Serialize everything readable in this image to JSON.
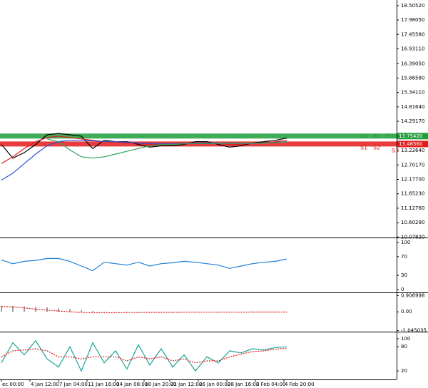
{
  "chart_data": [
    {
      "type": "line",
      "x": [
        0,
        4,
        8,
        12,
        16,
        20,
        24,
        28,
        32,
        36,
        40,
        44,
        48,
        52,
        56,
        60,
        64,
        68,
        72,
        76,
        80,
        84,
        88,
        92,
        96,
        100
      ],
      "xlim": [
        -0.5,
        138.5
      ],
      "ylim": [
        10.06,
        18.71
      ],
      "yticks": [
        {
          "value": 18.5052,
          "label": "18.50520"
        },
        {
          "value": 17.9805,
          "label": "17.98050"
        },
        {
          "value": 17.4558,
          "label": "17.45580"
        },
        {
          "value": 16.9311,
          "label": "16.93110"
        },
        {
          "value": 16.3905,
          "label": "16.39050"
        },
        {
          "value": 15.8658,
          "label": "15.86580"
        },
        {
          "value": 15.3411,
          "label": "15.34110"
        },
        {
          "value": 14.8164,
          "label": "14.81640"
        },
        {
          "value": 14.2917,
          "label": "14.29170"
        },
        {
          "value": 13.2264,
          "label": "13.22640"
        },
        {
          "value": 12.7017,
          "label": "12.70170"
        },
        {
          "value": 12.177,
          "label": "12.17700"
        },
        {
          "value": 11.6523,
          "label": "11.65230"
        },
        {
          "value": 11.1276,
          "label": "11.12760"
        },
        {
          "value": 10.6029,
          "label": "10.60290"
        },
        {
          "value": 10.0782,
          "label": "10.07820"
        }
      ],
      "series": [
        {
          "color": "#000000",
          "values": [
            13.45,
            12.95,
            13.15,
            13.45,
            13.8,
            13.85,
            13.8,
            13.75,
            13.3,
            13.6,
            13.55,
            13.55,
            13.45,
            13.35,
            13.4,
            13.4,
            13.45,
            13.55,
            13.55,
            13.45,
            13.35,
            13.4,
            13.5,
            13.55,
            13.6,
            13.68
          ]
        },
        {
          "color": "#e31b1b",
          "values": [
            12.75,
            13.0,
            13.3,
            13.55,
            13.7,
            13.75,
            13.7,
            13.65,
            13.6,
            13.55,
            13.55,
            13.5,
            13.5,
            13.45,
            13.45,
            13.45,
            13.5,
            13.5,
            13.5,
            13.5,
            13.45,
            13.45,
            13.5,
            13.5,
            13.55,
            13.6
          ]
        },
        {
          "color": "#2a4fd8",
          "values": [
            12.15,
            12.4,
            12.75,
            13.1,
            13.4,
            13.55,
            13.6,
            13.6,
            13.58,
            13.56,
            13.55,
            13.53,
            13.5,
            13.48,
            13.47,
            13.47,
            13.48,
            13.49,
            13.5,
            13.5,
            13.49,
            13.48,
            13.48,
            13.5,
            13.52,
            13.55
          ]
        },
        {
          "color": "#2ea55a",
          "values": [
            null,
            null,
            null,
            null,
            13.65,
            13.55,
            13.25,
            13.0,
            12.95,
            13.0,
            13.1,
            13.2,
            13.3,
            13.4,
            13.45,
            13.45,
            13.47,
            13.48,
            13.48,
            13.49,
            13.48,
            13.48,
            13.49,
            13.5,
            13.52,
            13.54
          ]
        }
      ],
      "levels": [
        {
          "value": 13.7542,
          "label": "13.75420",
          "color": "#1e9e3a",
          "tags": [
            "R1",
            "R2",
            "R3"
          ]
        },
        {
          "value": 13.4656,
          "label": "13.46560",
          "color": "#e31b1b",
          "tags": [
            "S1",
            "S2",
            "S3"
          ]
        }
      ]
    },
    {
      "type": "line",
      "x": [
        0,
        4,
        8,
        12,
        16,
        20,
        24,
        28,
        32,
        36,
        40,
        44,
        48,
        52,
        56,
        60,
        64,
        68,
        72,
        76,
        80,
        84,
        88,
        92,
        96,
        100
      ],
      "xlim": [
        -0.5,
        138.5
      ],
      "ylim": [
        -6,
        106
      ],
      "yticks": [
        100,
        70,
        30,
        0
      ],
      "series": [
        {
          "color": "#1e7fd8",
          "values": [
            63,
            55,
            60,
            62,
            66,
            66,
            60,
            50,
            40,
            58,
            55,
            52,
            58,
            50,
            55,
            57,
            60,
            58,
            55,
            52,
            45,
            50,
            55,
            58,
            60,
            65
          ]
        }
      ]
    },
    {
      "type": "line",
      "x": [
        0,
        4,
        8,
        12,
        16,
        20,
        24,
        28,
        32,
        36,
        40,
        44,
        48,
        52,
        56,
        60,
        64,
        68,
        72,
        76,
        80,
        84,
        88,
        92,
        96,
        100
      ],
      "xlim": [
        -0.5,
        138.5
      ],
      "ylim": [
        -1.1,
        1.0
      ],
      "yticks": [
        0.906998,
        {
          "value": 0,
          "label": "0.00"
        },
        -1.045035
      ],
      "series": [
        {
          "type": "bar",
          "color": "#a0a0a0",
          "values": [
            0.35,
            0.33,
            0.3,
            0.28,
            0.25,
            0.2,
            0.15,
            0.1,
            0.05,
            0.02,
            0.01,
            0.01,
            0.01,
            0.01,
            0.01,
            0.01,
            0.01,
            0.01,
            0.01,
            0.01,
            0.01,
            0.01,
            0.01,
            0.01,
            0.01,
            0.01
          ]
        },
        {
          "color": "#e31b1b",
          "dash": true,
          "values": [
            0.3,
            0.28,
            0.22,
            0.15,
            0.1,
            0.05,
            0.0,
            -0.03,
            -0.05,
            -0.05,
            -0.05,
            -0.04,
            -0.04,
            -0.03,
            -0.03,
            -0.03,
            -0.02,
            -0.02,
            -0.02,
            -0.02,
            -0.02,
            -0.02,
            -0.01,
            -0.01,
            -0.01,
            -0.01
          ]
        }
      ]
    },
    {
      "type": "line",
      "x": [
        0,
        4,
        8,
        12,
        16,
        20,
        24,
        28,
        32,
        36,
        40,
        44,
        48,
        52,
        56,
        60,
        64,
        68,
        72,
        76,
        80,
        84,
        88,
        92,
        96,
        100
      ],
      "xlim": [
        -0.5,
        138.5
      ],
      "ylim": [
        -1,
        114
      ],
      "yticks": [
        100,
        80,
        20
      ],
      "xticks": [
        {
          "value": 0,
          "label": "ec 00:00"
        },
        {
          "value": 10,
          "label": "4 Jan 12:00"
        },
        {
          "value": 20,
          "label": "7 Jan 04:00"
        },
        {
          "value": 30,
          "label": "11 Jan 16:00"
        },
        {
          "value": 40,
          "label": "14 Jan 08:00"
        },
        {
          "value": 50,
          "label": "18 Jan 20:00"
        },
        {
          "value": 59,
          "label": "21 Jan 12:00"
        },
        {
          "value": 69,
          "label": "26 Jan 00:00"
        },
        {
          "value": 79,
          "label": "28 Jan 16:00"
        },
        {
          "value": 89,
          "label": "2 Feb 04:00"
        },
        {
          "value": 99,
          "label": "4 Feb 20:00"
        }
      ],
      "series": [
        {
          "color": "#1aa39a",
          "values": [
            40,
            90,
            60,
            95,
            50,
            30,
            80,
            20,
            90,
            40,
            70,
            25,
            85,
            35,
            75,
            30,
            60,
            20,
            55,
            40,
            70,
            65,
            75,
            72,
            78,
            80
          ]
        },
        {
          "color": "#e31b1b",
          "dash": true,
          "values": [
            55,
            70,
            72,
            75,
            70,
            55,
            55,
            50,
            55,
            55,
            55,
            45,
            55,
            50,
            55,
            45,
            50,
            40,
            45,
            45,
            55,
            62,
            68,
            70,
            74,
            76
          ]
        }
      ]
    }
  ]
}
